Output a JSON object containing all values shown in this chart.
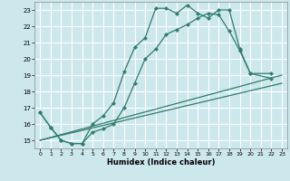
{
  "title": "",
  "xlabel": "Humidex (Indice chaleur)",
  "xlim": [
    -0.5,
    23.5
  ],
  "ylim": [
    14.5,
    23.5
  ],
  "yticks": [
    15,
    16,
    17,
    18,
    19,
    20,
    21,
    22,
    23
  ],
  "xticks": [
    0,
    1,
    2,
    3,
    4,
    5,
    6,
    7,
    8,
    9,
    10,
    11,
    12,
    13,
    14,
    15,
    16,
    17,
    18,
    19,
    20,
    21,
    22,
    23
  ],
  "bg_color": "#cde8ec",
  "grid_color": "#ffffff",
  "line_color": "#2e7d6e",
  "line1": {
    "x": [
      0,
      1,
      2,
      3,
      4,
      5,
      6,
      7,
      8,
      9,
      10,
      11,
      12,
      13,
      14,
      15,
      16,
      17,
      18,
      19,
      20,
      22
    ],
    "y": [
      16.7,
      15.8,
      15.0,
      14.8,
      14.8,
      16.0,
      16.5,
      17.3,
      19.2,
      20.7,
      21.3,
      23.1,
      23.1,
      22.8,
      23.3,
      22.8,
      22.5,
      23.0,
      23.0,
      20.6,
      19.1,
      19.1
    ]
  },
  "line2": {
    "x": [
      0,
      1,
      2,
      3,
      4,
      5,
      6,
      7,
      8,
      9,
      10,
      11,
      12,
      13,
      14,
      15,
      16,
      17,
      18,
      19,
      20,
      22
    ],
    "y": [
      16.7,
      15.8,
      15.0,
      14.8,
      14.8,
      15.5,
      15.7,
      16.0,
      17.0,
      18.5,
      20.0,
      20.6,
      21.5,
      21.8,
      22.1,
      22.5,
      22.8,
      22.7,
      21.7,
      20.5,
      19.1,
      18.8
    ]
  },
  "line3": {
    "x": [
      0,
      23
    ],
    "y": [
      15.0,
      19.0
    ]
  },
  "line4": {
    "x": [
      0,
      23
    ],
    "y": [
      15.0,
      18.5
    ]
  }
}
